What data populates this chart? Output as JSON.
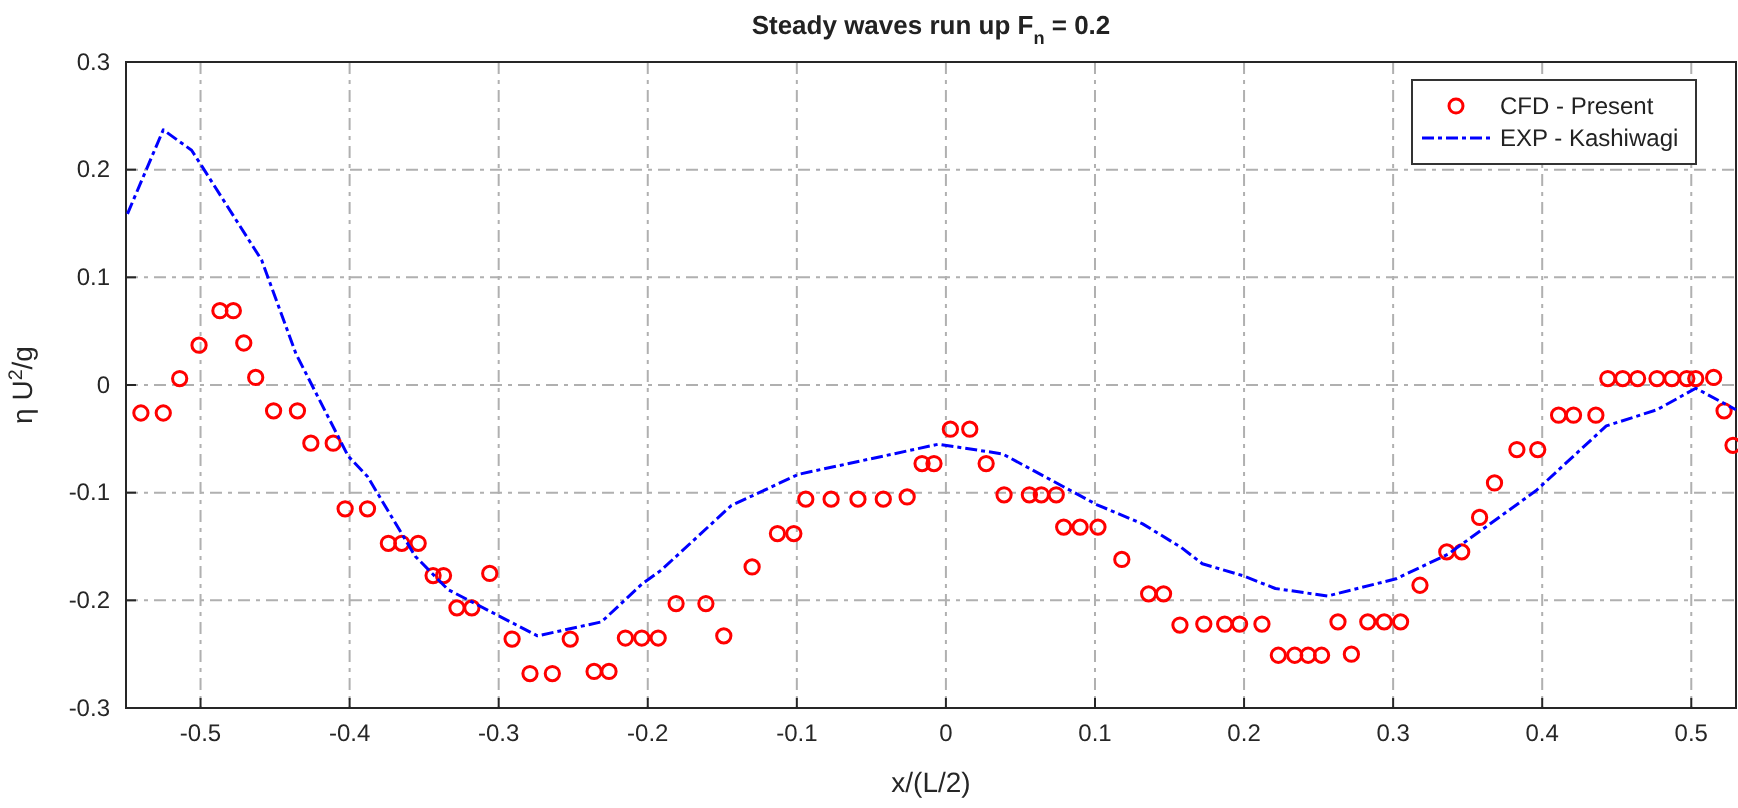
{
  "chart_data": {
    "type": "scatter",
    "title": "Steady waves run up F$_{n}$ = 0.2",
    "xlabel": "x/(L/2)",
    "ylabel": "η U$^{2}$/g",
    "xlim": [
      -0.55,
      0.53
    ],
    "ylim": [
      -0.3,
      0.3
    ],
    "xticks": [
      -0.5,
      -0.4,
      -0.3,
      -0.2,
      -0.1,
      0,
      0.1,
      0.2,
      0.3,
      0.4,
      0.5
    ],
    "yticks": [
      -0.3,
      -0.2,
      -0.1,
      0,
      0.1,
      0.2,
      0.3
    ],
    "grid": true,
    "legend": "top right",
    "series": [
      {
        "name": "CFD - Present",
        "marker": "circle",
        "color": "#ff0000",
        "x": [
          -0.54,
          -0.525,
          -0.514,
          -0.501,
          -0.487,
          -0.478,
          -0.471,
          -0.463,
          -0.451,
          -0.435,
          -0.426,
          -0.411,
          -0.403,
          -0.388,
          -0.374,
          -0.365,
          -0.354,
          -0.344,
          -0.337,
          -0.328,
          -0.318,
          -0.306,
          -0.291,
          -0.279,
          -0.264,
          -0.252,
          -0.236,
          -0.226,
          -0.215,
          -0.204,
          -0.193,
          -0.181,
          -0.161,
          -0.149,
          -0.13,
          -0.113,
          -0.102,
          -0.094,
          -0.077,
          -0.059,
          -0.042,
          -0.026,
          -0.016,
          -0.008,
          0.003,
          0.016,
          0.027,
          0.039,
          0.056,
          0.064,
          0.074,
          0.079,
          0.09,
          0.102,
          0.118,
          0.136,
          0.146,
          0.157,
          0.173,
          0.187,
          0.197,
          0.212,
          0.223,
          0.234,
          0.243,
          0.252,
          0.263,
          0.272,
          0.283,
          0.294,
          0.305,
          0.318,
          0.336,
          0.346,
          0.358,
          0.368,
          0.383,
          0.397,
          0.411,
          0.421,
          0.436,
          0.444,
          0.454,
          0.464,
          0.477,
          0.487,
          0.497,
          0.503,
          0.515,
          0.522,
          0.528
        ],
        "values": [
          -0.026,
          -0.026,
          0.006,
          0.037,
          0.069,
          0.069,
          0.039,
          0.007,
          -0.024,
          -0.024,
          -0.054,
          -0.054,
          -0.115,
          -0.115,
          -0.147,
          -0.147,
          -0.147,
          -0.177,
          -0.177,
          -0.207,
          -0.207,
          -0.175,
          -0.236,
          -0.268,
          -0.268,
          -0.236,
          -0.266,
          -0.266,
          -0.235,
          -0.235,
          -0.235,
          -0.203,
          -0.203,
          -0.233,
          -0.169,
          -0.138,
          -0.138,
          -0.106,
          -0.106,
          -0.106,
          -0.106,
          -0.104,
          -0.073,
          -0.073,
          -0.041,
          -0.041,
          -0.073,
          -0.102,
          -0.102,
          -0.102,
          -0.102,
          -0.132,
          -0.132,
          -0.132,
          -0.162,
          -0.194,
          -0.194,
          -0.223,
          -0.222,
          -0.222,
          -0.222,
          -0.222,
          -0.251,
          -0.251,
          -0.251,
          -0.251,
          -0.22,
          -0.25,
          -0.22,
          -0.22,
          -0.22,
          -0.186,
          -0.155,
          -0.155,
          -0.123,
          -0.091,
          -0.06,
          -0.06,
          -0.028,
          -0.028,
          -0.028,
          0.006,
          0.006,
          0.006,
          0.006,
          0.006,
          0.006,
          0.006,
          0.007,
          -0.024,
          -0.056
        ]
      },
      {
        "name": "EXP - Kashiwagi",
        "type": "line",
        "marker": "none",
        "line_style": "dashed",
        "color": "#0000ff",
        "x": [
          -0.549,
          -0.525,
          -0.506,
          -0.499,
          -0.459,
          -0.436,
          -0.401,
          -0.388,
          -0.356,
          -0.334,
          -0.274,
          -0.231,
          -0.204,
          -0.191,
          -0.144,
          -0.099,
          -0.005,
          0.038,
          0.101,
          0.132,
          0.158,
          0.172,
          0.199,
          0.221,
          0.256,
          0.302,
          0.337,
          0.396,
          0.443,
          0.477,
          0.503,
          0.53
        ],
        "values": [
          0.159,
          0.237,
          0.218,
          0.203,
          0.116,
          0.029,
          -0.066,
          -0.085,
          -0.159,
          -0.19,
          -0.233,
          -0.22,
          -0.185,
          -0.172,
          -0.112,
          -0.083,
          -0.055,
          -0.064,
          -0.111,
          -0.129,
          -0.151,
          -0.166,
          -0.177,
          -0.189,
          -0.196,
          -0.18,
          -0.157,
          -0.098,
          -0.038,
          -0.023,
          -0.003,
          -0.023
        ]
      }
    ]
  }
}
